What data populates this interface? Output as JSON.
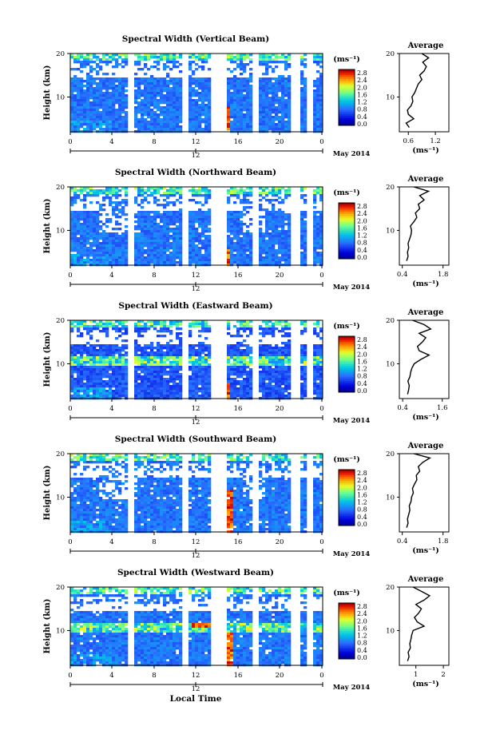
{
  "chart_data": [
    {
      "type": "heatmap",
      "title": "Spectral Width (Vertical Beam)",
      "ylabel": "Height (km)",
      "x_ticks": [
        "0",
        "4",
        "8",
        "12",
        "16",
        "20",
        "0"
      ],
      "date_label": "12",
      "month_label": "May 2014",
      "ylim": [
        2,
        20
      ],
      "y_ticks": [
        "20",
        "10"
      ],
      "colorbar": {
        "unit": "(ms⁻¹)",
        "ticks": [
          "2.8",
          "2.4",
          "2.0",
          "1.6",
          "1.2",
          "0.8",
          "0.4",
          "0.0"
        ],
        "range": [
          0,
          3.0
        ]
      },
      "average": {
        "title": "Average",
        "xlabel": "(ms⁻¹)",
        "x_ticks": [
          "0.6",
          "1.2"
        ],
        "xlim": [
          0.4,
          1.5
        ],
        "y_ticks": [
          "20",
          "10"
        ],
        "height": [
          3,
          4,
          5,
          6,
          7,
          8,
          9,
          10,
          11,
          12,
          13,
          14,
          15,
          16,
          17,
          18,
          19,
          20
        ],
        "value": [
          0.62,
          0.55,
          0.72,
          0.6,
          0.58,
          0.66,
          0.7,
          0.68,
          0.74,
          0.78,
          0.82,
          0.9,
          0.85,
          0.95,
          1.0,
          0.92,
          1.05,
          0.9
        ]
      }
    },
    {
      "type": "heatmap",
      "title": "Spectral Width (Northward Beam)",
      "ylabel": "Height (km)",
      "x_ticks": [
        "0",
        "4",
        "8",
        "12",
        "16",
        "20",
        "0"
      ],
      "date_label": "12",
      "month_label": "May 2014",
      "ylim": [
        2,
        20
      ],
      "y_ticks": [
        "20",
        "10"
      ],
      "colorbar": {
        "unit": "(ms⁻¹)",
        "ticks": [
          "2.8",
          "2.4",
          "2.0",
          "1.6",
          "1.2",
          "0.8",
          "0.4",
          "0.0"
        ],
        "range": [
          0,
          3.0
        ]
      },
      "average": {
        "title": "Average",
        "xlabel": "(ms⁻¹)",
        "x_ticks": [
          "0.4",
          "1.8"
        ],
        "xlim": [
          0.3,
          2.0
        ],
        "y_ticks": [
          "20",
          "10"
        ],
        "height": [
          3,
          4,
          5,
          6,
          7,
          8,
          9,
          10,
          11,
          12,
          13,
          14,
          15,
          16,
          17,
          18,
          19,
          20
        ],
        "value": [
          0.55,
          0.6,
          0.58,
          0.62,
          0.6,
          0.65,
          0.7,
          0.72,
          0.68,
          0.8,
          0.9,
          0.85,
          1.0,
          0.95,
          1.15,
          1.0,
          1.3,
          0.8
        ]
      }
    },
    {
      "type": "heatmap",
      "title": "Spectral Width (Eastward Beam)",
      "ylabel": "Height (km)",
      "x_ticks": [
        "0",
        "4",
        "8",
        "12",
        "16",
        "20",
        "0"
      ],
      "date_label": "12",
      "month_label": "May 2014",
      "ylim": [
        2,
        20
      ],
      "y_ticks": [
        "20",
        "10"
      ],
      "colorbar": {
        "unit": "(ms⁻¹)",
        "ticks": [
          "2.8",
          "2.4",
          "2.0",
          "1.6",
          "1.2",
          "0.8",
          "0.4",
          "0.0"
        ],
        "range": [
          0,
          3.0
        ]
      },
      "average": {
        "title": "Average",
        "xlabel": "(ms⁻¹)",
        "x_ticks": [
          "0.4",
          "1.6"
        ],
        "xlim": [
          0.3,
          1.8
        ],
        "y_ticks": [
          "20",
          "10"
        ],
        "height": [
          3,
          4,
          5,
          6,
          7,
          8,
          9,
          10,
          11,
          12,
          13,
          14,
          15,
          16,
          17,
          18,
          19,
          20
        ],
        "value": [
          0.55,
          0.58,
          0.6,
          0.56,
          0.62,
          0.64,
          0.68,
          0.75,
          0.95,
          1.2,
          0.9,
          0.85,
          1.0,
          1.1,
          0.9,
          1.25,
          1.05,
          0.7
        ]
      }
    },
    {
      "type": "heatmap",
      "title": "Spectral Width (Southward Beam)",
      "ylabel": "Height (km)",
      "x_ticks": [
        "0",
        "4",
        "8",
        "12",
        "16",
        "20",
        "0"
      ],
      "date_label": "12",
      "month_label": "May 2014",
      "ylim": [
        2,
        20
      ],
      "y_ticks": [
        "20",
        "10"
      ],
      "colorbar": {
        "unit": "(ms⁻¹)",
        "ticks": [
          "2.8",
          "2.4",
          "2.0",
          "1.6",
          "1.2",
          "0.8",
          "0.4",
          "0.0"
        ],
        "range": [
          0,
          3.0
        ]
      },
      "average": {
        "title": "Average",
        "xlabel": "(ms⁻¹)",
        "x_ticks": [
          "0.4",
          "1.8"
        ],
        "xlim": [
          0.3,
          2.0
        ],
        "y_ticks": [
          "20",
          "10"
        ],
        "height": [
          3,
          4,
          5,
          6,
          7,
          8,
          9,
          10,
          11,
          12,
          13,
          14,
          15,
          16,
          17,
          18,
          19,
          20
        ],
        "value": [
          0.55,
          0.6,
          0.58,
          0.62,
          0.66,
          0.64,
          0.7,
          0.72,
          0.78,
          0.75,
          0.82,
          0.9,
          0.88,
          1.0,
          0.95,
          1.1,
          1.35,
          0.8
        ]
      }
    },
    {
      "type": "heatmap",
      "title": "Spectral Width (Westward Beam)",
      "ylabel": "Height (km)",
      "x_ticks": [
        "0",
        "4",
        "8",
        "12",
        "16",
        "20",
        "0"
      ],
      "date_label": "12",
      "month_label": "May 2014",
      "ylim": [
        2,
        20
      ],
      "y_ticks": [
        "20",
        "10"
      ],
      "colorbar": {
        "unit": "(ms⁻¹)",
        "ticks": [
          "2.8",
          "2.4",
          "2.0",
          "1.6",
          "1.2",
          "0.8",
          "0.4",
          "0.0"
        ],
        "range": [
          0,
          3.0
        ]
      },
      "average": {
        "title": "Average",
        "xlabel": "(ms⁻¹)",
        "x_ticks": [
          "1",
          "2"
        ],
        "xlim": [
          0.4,
          2.2
        ],
        "y_ticks": [
          "20",
          "10"
        ],
        "height": [
          3,
          4,
          5,
          6,
          7,
          8,
          9,
          10,
          11,
          12,
          13,
          14,
          15,
          16,
          17,
          18,
          19,
          20
        ],
        "value": [
          0.7,
          0.75,
          0.72,
          0.8,
          0.78,
          0.82,
          0.85,
          0.9,
          1.3,
          1.05,
          0.95,
          1.1,
          1.2,
          1.0,
          1.3,
          1.5,
          1.2,
          0.9
        ]
      }
    }
  ],
  "footer": {
    "xlabel": "Local Time"
  },
  "colors": {
    "low": "#000080",
    "mid_low": "#3c64ff",
    "mid": "#00c8c8",
    "mid_high": "#c8ff32",
    "high": "#ff3c00",
    "max": "#b40000"
  }
}
